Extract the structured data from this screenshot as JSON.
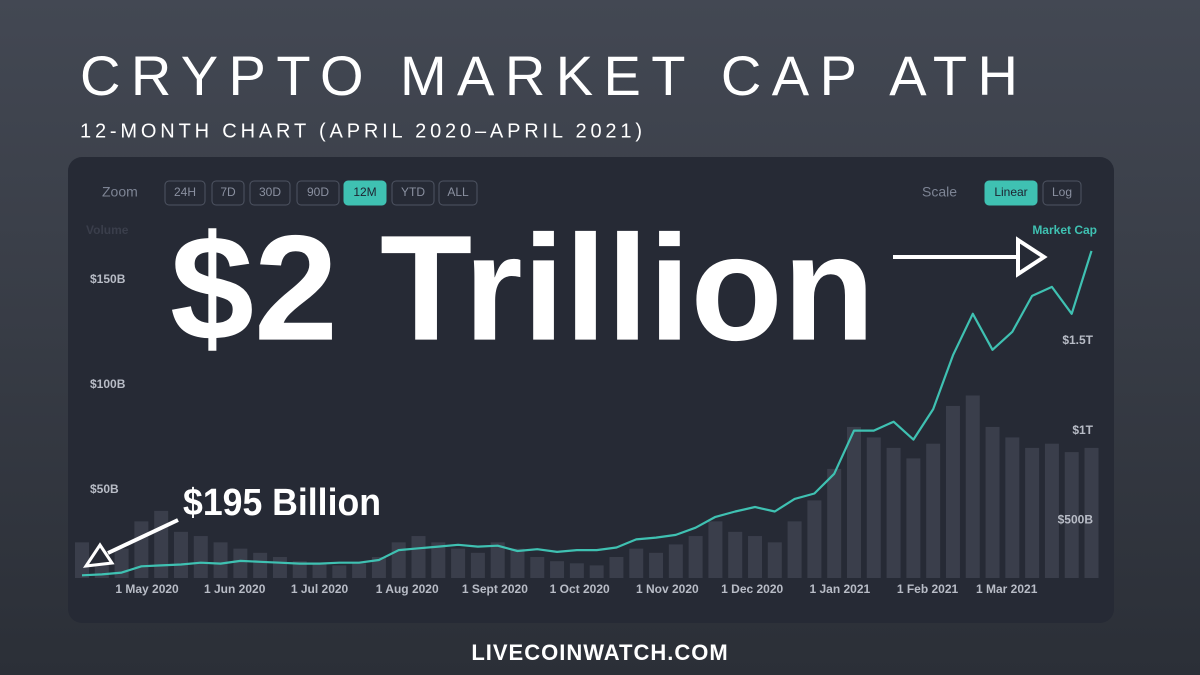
{
  "header": {
    "title": "CRYPTO MARKET CAP ATH",
    "subtitle": "12-MONTH CHART (APRIL 2020–APRIL 2021)"
  },
  "controls": {
    "zoom_label": "Zoom",
    "zoom_options": [
      "24H",
      "7D",
      "30D",
      "90D",
      "12M",
      "YTD",
      "ALL"
    ],
    "zoom_selected": 4,
    "scale_label": "Scale",
    "scale_options": [
      "Linear",
      "Log"
    ],
    "scale_selected": 0
  },
  "chart_data": {
    "type": "line",
    "x": [
      "2020-04-08",
      "2020-04-15",
      "2020-04-22",
      "2020-04-29",
      "2020-05-06",
      "2020-05-13",
      "2020-05-20",
      "2020-05-27",
      "2020-06-03",
      "2020-06-10",
      "2020-06-17",
      "2020-06-24",
      "2020-07-01",
      "2020-07-08",
      "2020-07-15",
      "2020-07-22",
      "2020-07-29",
      "2020-08-05",
      "2020-08-12",
      "2020-08-19",
      "2020-08-26",
      "2020-09-02",
      "2020-09-09",
      "2020-09-16",
      "2020-09-23",
      "2020-09-30",
      "2020-10-07",
      "2020-10-14",
      "2020-10-21",
      "2020-10-28",
      "2020-11-04",
      "2020-11-11",
      "2020-11-18",
      "2020-11-25",
      "2020-12-02",
      "2020-12-09",
      "2020-12-16",
      "2020-12-23",
      "2020-12-30",
      "2021-01-06",
      "2021-01-13",
      "2021-01-20",
      "2021-01-27",
      "2021-02-03",
      "2021-02-10",
      "2021-02-17",
      "2021-02-24",
      "2021-03-03",
      "2021-03-10",
      "2021-03-17",
      "2021-03-24",
      "2021-03-31"
    ],
    "xlim": [
      "2020-04-08",
      "2021-04-03"
    ],
    "xticks": [
      {
        "value": "2020-05-01",
        "label": "1 May 2020"
      },
      {
        "value": "2020-06-01",
        "label": "1 Jun 2020"
      },
      {
        "value": "2020-07-01",
        "label": "1 Jul 2020"
      },
      {
        "value": "2020-08-01",
        "label": "1 Aug 2020"
      },
      {
        "value": "2020-09-01",
        "label": "1 Sept 2020"
      },
      {
        "value": "2020-10-01",
        "label": "1 Oct 2020"
      },
      {
        "value": "2020-11-01",
        "label": "1 Nov 2020"
      },
      {
        "value": "2020-12-01",
        "label": "1 Dec 2020"
      },
      {
        "value": "2021-01-01",
        "label": "1 Jan 2021"
      },
      {
        "value": "2021-02-01",
        "label": "1 Feb 2021"
      },
      {
        "value": "2021-03-01",
        "label": "1 Mar 2021"
      }
    ],
    "ylim": [
      8,
      181
    ],
    "yticks": [
      {
        "value": 50,
        "label": "$50B"
      },
      {
        "value": 100,
        "label": "$100B"
      },
      {
        "value": 150,
        "label": "$150B"
      }
    ],
    "y2lim": [
      180,
      2200
    ],
    "y2ticks": [
      {
        "value": 500,
        "label": "$500B"
      },
      {
        "value": 1000,
        "label": "$1T"
      },
      {
        "value": 1500,
        "label": "$1.5T"
      }
    ],
    "series": [
      {
        "name": "Volume",
        "type": "bar",
        "color": "#3a3e4b",
        "values": [
          25,
          20,
          22,
          35,
          40,
          30,
          28,
          25,
          22,
          20,
          18,
          16,
          15,
          14,
          15,
          18,
          25,
          28,
          25,
          22,
          20,
          25,
          22,
          18,
          16,
          15,
          14,
          18,
          22,
          20,
          24,
          28,
          35,
          30,
          28,
          25,
          35,
          45,
          60,
          80,
          75,
          70,
          65,
          72,
          90,
          95,
          80,
          75,
          70,
          72,
          68,
          70
        ]
      },
      {
        "name": "Market Cap",
        "type": "line",
        "axis": "y2",
        "color": "#3fc1b2",
        "values": [
          195,
          200,
          210,
          245,
          250,
          255,
          265,
          260,
          275,
          270,
          265,
          260,
          260,
          265,
          265,
          280,
          335,
          345,
          355,
          365,
          355,
          360,
          330,
          340,
          325,
          335,
          335,
          350,
          395,
          405,
          420,
          460,
          520,
          550,
          575,
          550,
          620,
          650,
          760,
          1000,
          1000,
          1050,
          950,
          1120,
          1420,
          1650,
          1450,
          1550,
          1750,
          1800,
          1650,
          2000
        ]
      }
    ],
    "annotations": [
      "$2 Trillion",
      "$195 Billion"
    ]
  },
  "footer": "LIVECOINWATCH.COM"
}
